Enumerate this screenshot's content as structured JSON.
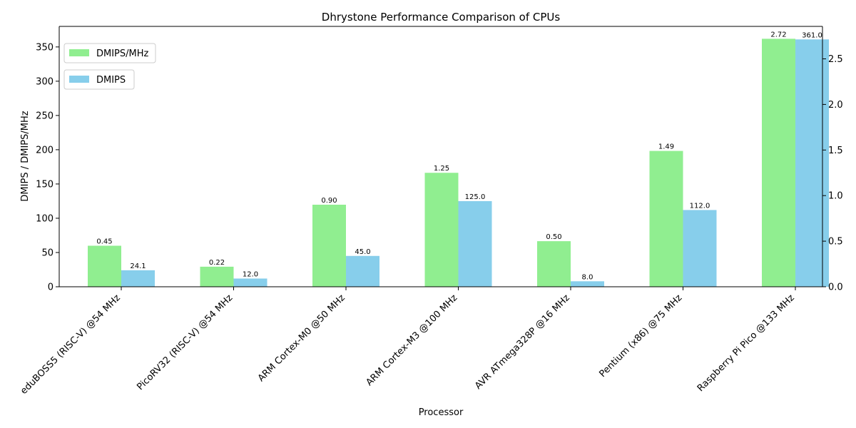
{
  "chart_data": {
    "type": "bar",
    "title": "Dhrystone Performance Comparison of CPUs",
    "xlabel": "Processor",
    "ylabel": "DMIPS / DMIPS/MHz",
    "categories": [
      "eduBOSS5 (RISC-V) @54 MHz",
      "PicoRV32 (RISC-V) @54 MHz",
      "ARM Cortex-M0 @50 MHz",
      "ARM Cortex-M3 @100 MHz",
      "AVR ATmega328P @16 MHz",
      "Pentium (x86) @75 MHz",
      "Raspberry Pi Pico @133 MHz"
    ],
    "series": [
      {
        "name": "DMIPS/MHz",
        "axis": "right",
        "color": "#90ee90",
        "values": [
          0.45,
          0.22,
          0.9,
          1.25,
          0.5,
          1.49,
          2.72
        ],
        "labels": [
          "0.45",
          "0.22",
          "0.90",
          "1.25",
          "0.50",
          "1.49",
          "2.72"
        ]
      },
      {
        "name": "DMIPS",
        "axis": "left",
        "color": "#87ceeb",
        "values": [
          24.1,
          12.0,
          45.0,
          125.0,
          8.0,
          112.0,
          361.0
        ],
        "labels": [
          "24.1",
          "12.0",
          "45.0",
          "125.0",
          "8.0",
          "112.0",
          "361.0"
        ]
      }
    ],
    "y_left": {
      "ylim": [
        0,
        380
      ],
      "ticks": [
        0,
        50,
        100,
        150,
        200,
        250,
        300,
        350
      ]
    },
    "y_right": {
      "ylim": [
        0,
        2.856
      ],
      "ticks": [
        "0.0",
        "0.5",
        "1.0",
        "1.5",
        "2.0",
        "2.5"
      ]
    },
    "legend_placement": "upper-left",
    "grid": false
  }
}
